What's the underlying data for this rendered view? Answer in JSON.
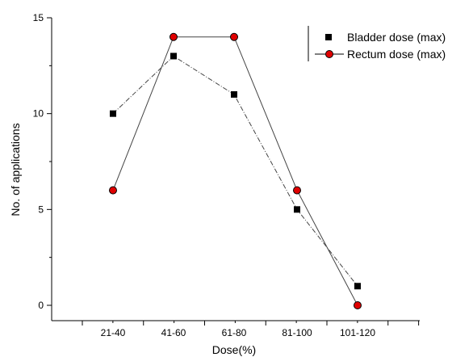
{
  "chart_data": {
    "type": "line",
    "categories": [
      "21-40",
      "41-60",
      "61-80",
      "81-100",
      "101-120"
    ],
    "series": [
      {
        "name": "Bladder dose (max)",
        "values": [
          10,
          13,
          11,
          5,
          1
        ],
        "color": "#000000",
        "marker": "square",
        "line_color": "#444444"
      },
      {
        "name": "Rectum dose (max)",
        "values": [
          6,
          14,
          14,
          6,
          0
        ],
        "color": "#e00000",
        "marker": "circle",
        "line_color": "#444444"
      }
    ],
    "xlabel": "Dose(%)",
    "ylabel": "No. of applications",
    "ylim": [
      0,
      15
    ],
    "yticks": [
      0,
      5,
      10,
      15
    ],
    "grid": false,
    "legend_position": "top-right"
  }
}
